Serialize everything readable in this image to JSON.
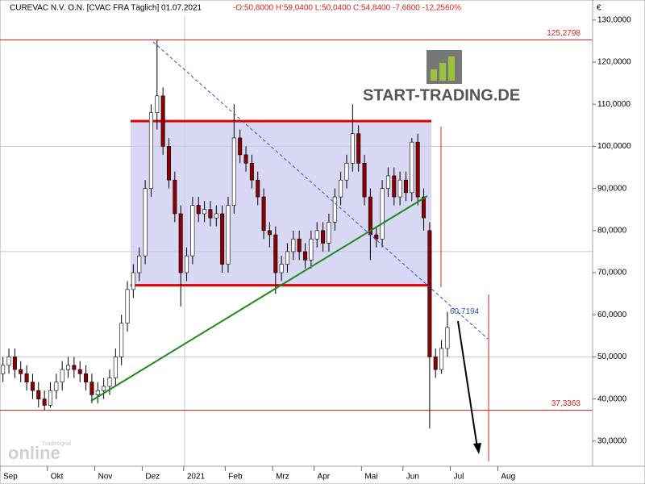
{
  "chart_data": {
    "type": "candlestick",
    "title": "CUREVAC N.V.   O.N. [CVAC FRA  Täglich] 01.07.2021",
    "quote": "-O:50,8000 H:59,0400 L:50,0400 C:54,8400 -7,6600 -12,2560%",
    "currency": "€",
    "logo": "START-TRADING.DE",
    "watermark_top": "Tradesignal",
    "watermark": "online",
    "up_color": "#ffffff",
    "down_color": "#8b0000",
    "categories": [
      "Sep",
      null,
      null,
      null,
      null,
      null,
      null,
      null,
      "Okt",
      null,
      null,
      null,
      null,
      null,
      null,
      null,
      "Nov",
      null,
      null,
      null,
      null,
      null,
      null,
      null,
      "Dez",
      null,
      null,
      null,
      null,
      null,
      null,
      "2021",
      null,
      null,
      null,
      null,
      null,
      null,
      "Feb",
      null,
      null,
      null,
      null,
      null,
      null,
      null,
      "Mrz",
      null,
      null,
      null,
      null,
      null,
      null,
      "Apr",
      null,
      null,
      null,
      null,
      null,
      null,
      null,
      "Mai",
      null,
      null,
      null,
      null,
      null,
      null,
      "Jun",
      null,
      null,
      null,
      null,
      null,
      null,
      null,
      "Jul",
      null,
      null,
      null,
      null,
      null,
      null,
      null,
      "Aug",
      null,
      null,
      null,
      null,
      null,
      null,
      null,
      null,
      null,
      null,
      null,
      null,
      null,
      null,
      null
    ],
    "open": [
      46,
      48,
      50,
      47,
      46,
      44,
      42,
      40,
      38.5,
      42,
      44,
      47,
      48,
      47,
      46,
      44,
      41,
      42,
      43,
      45,
      50,
      58,
      66,
      70,
      74,
      90,
      108,
      112,
      100,
      92,
      84,
      70,
      74,
      86,
      84,
      85,
      83,
      84,
      72,
      86,
      102,
      98,
      96,
      92,
      88,
      80,
      79,
      70,
      72,
      75,
      78,
      75,
      73,
      78,
      80,
      77,
      82,
      88,
      92,
      96,
      103,
      96,
      88,
      79,
      78,
      90,
      93,
      88,
      92,
      89,
      101,
      88,
      80,
      50,
      47,
      52,
      null,
      null,
      null,
      null,
      null,
      null,
      null,
      null,
      null,
      null,
      null,
      null,
      null,
      null,
      null,
      null,
      null,
      null,
      null,
      null,
      null,
      null,
      null,
      null
    ],
    "high": [
      50,
      52,
      52,
      49,
      48,
      46,
      44,
      42,
      44,
      46,
      49,
      50,
      50,
      49,
      48,
      46,
      44,
      45,
      47,
      52,
      60,
      68,
      72,
      76,
      92,
      110,
      125.3,
      114,
      102,
      94,
      86,
      76,
      88,
      88,
      87,
      87,
      86,
      86,
      88,
      110,
      104,
      100,
      98,
      94,
      90,
      82,
      81,
      74,
      77,
      80,
      80,
      77,
      80,
      82,
      82,
      84,
      90,
      94,
      98,
      110,
      105,
      98,
      90,
      81,
      92,
      95,
      95,
      94,
      94,
      102,
      103,
      90,
      82,
      52,
      54,
      60.7,
      null,
      null,
      null,
      null,
      null,
      null,
      null,
      null,
      null,
      null,
      null,
      null,
      null,
      null,
      null,
      null,
      null,
      null,
      null,
      null,
      null,
      null,
      null,
      null
    ],
    "low": [
      44,
      46,
      45,
      44,
      42,
      40,
      38,
      37.3,
      38,
      40,
      42,
      45,
      45,
      44,
      42,
      39,
      39,
      40,
      41,
      43,
      48,
      56,
      64,
      68,
      72,
      88,
      104,
      98,
      90,
      82,
      62,
      68,
      72,
      82,
      82,
      81,
      81,
      70,
      70,
      84,
      96,
      94,
      90,
      86,
      78,
      76,
      65,
      68,
      70,
      73,
      73,
      71,
      71,
      76,
      75,
      75,
      80,
      86,
      90,
      94,
      94,
      86,
      73,
      76,
      76,
      88,
      86,
      86,
      87,
      87,
      86,
      80,
      33,
      45,
      46,
      50,
      null,
      null,
      null,
      null,
      null,
      null,
      null,
      null,
      null,
      null,
      null,
      null,
      null,
      null,
      null,
      null,
      null,
      null,
      null,
      null,
      null,
      null,
      null,
      null
    ],
    "close": [
      48,
      50,
      47,
      46,
      44,
      42,
      40,
      38.5,
      42,
      44,
      47,
      48,
      47,
      46,
      44,
      41,
      42,
      43,
      45,
      50,
      58,
      66,
      70,
      74,
      90,
      108,
      112,
      100,
      92,
      84,
      70,
      74,
      86,
      84,
      85,
      83,
      84,
      72,
      86,
      102,
      98,
      96,
      92,
      88,
      80,
      79,
      70,
      72,
      75,
      78,
      75,
      73,
      78,
      80,
      77,
      82,
      88,
      92,
      96,
      103,
      96,
      88,
      79,
      78,
      90,
      93,
      88,
      92,
      89,
      101,
      88,
      83,
      50,
      47,
      52,
      57,
      null,
      null,
      null,
      null,
      null,
      null,
      null,
      null,
      null,
      null,
      null,
      null,
      null,
      null,
      null,
      null,
      null,
      null,
      null,
      null,
      null,
      null,
      null,
      null
    ],
    "ylim": [
      24.6,
      133.8
    ],
    "yticks": [
      {
        "value": 30,
        "label": "30,0000"
      },
      {
        "value": 40,
        "label": "40,0000"
      },
      {
        "value": 50,
        "label": "50,0000"
      },
      {
        "value": 60,
        "label": "60,0000"
      },
      {
        "value": 70,
        "label": "70,0000"
      },
      {
        "value": 80,
        "label": "80,0000"
      },
      {
        "value": 90,
        "label": "90,0000"
      },
      {
        "value": 100,
        "label": "100,0000"
      },
      {
        "value": 110,
        "label": "110,0000"
      },
      {
        "value": 120,
        "label": "120,0000"
      },
      {
        "value": 130,
        "label": "130,0000"
      }
    ],
    "ygrid": [
      50,
      75,
      100
    ],
    "hlines": [
      {
        "value": 125.2798,
        "label": "125,2798"
      },
      {
        "value": 37.3363,
        "label": "37,3363"
      }
    ],
    "price_label": {
      "value": 60.7194,
      "label": "60,7194"
    },
    "range_box": {
      "top": 106,
      "bottom": 67
    }
  }
}
